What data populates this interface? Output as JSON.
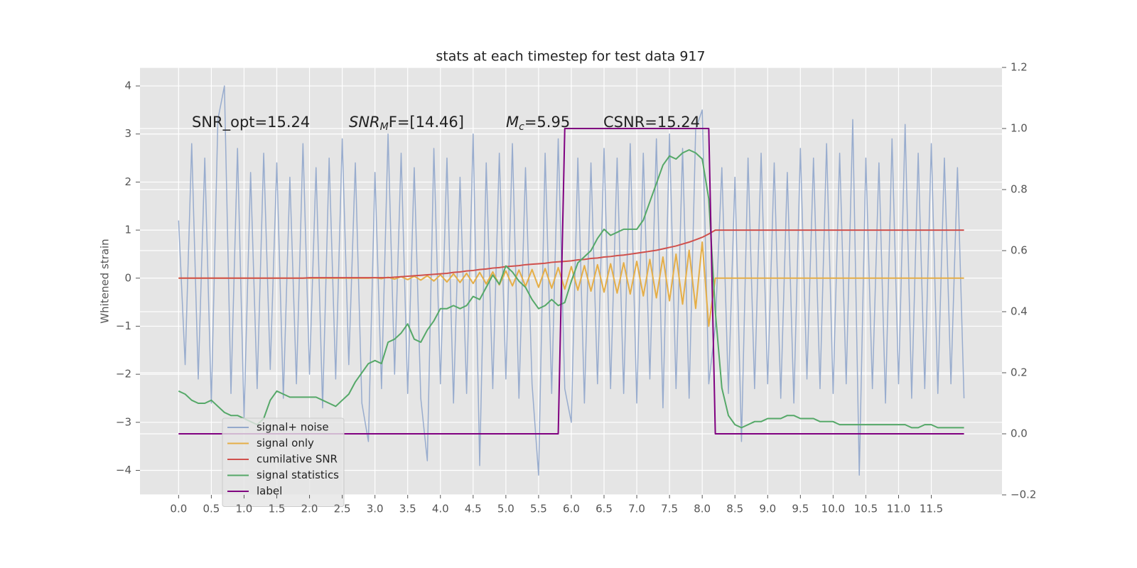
{
  "chart_data": {
    "type": "line",
    "title": "stats at each timestep for test data 917",
    "ylabel": "Whitened strain",
    "annotations": [
      {
        "text": "SNR_opt=15.24"
      },
      {
        "parts": [
          "SNR",
          "M",
          "F=[14.46]"
        ]
      },
      {
        "parts": [
          "M",
          "c",
          "=5.95"
        ]
      },
      {
        "text": "CSNR=15.24"
      }
    ],
    "grid": true,
    "legend": "lower left",
    "xlim": [
      -0.59,
      12.58
    ],
    "ylim": [
      -4.51,
      4.385
    ],
    "y2lim": [
      -0.2,
      1.2
    ],
    "xticks": [
      {
        "value": 0,
        "label": "0.0"
      },
      0.5,
      {
        "value": 1,
        "label": "1.0"
      },
      1.5,
      {
        "value": 2,
        "label": "2.0"
      },
      2.5,
      {
        "value": 3,
        "label": "3.0"
      },
      3.5,
      {
        "value": 4,
        "label": "4.0"
      },
      4.5,
      {
        "value": 5,
        "label": "5.0"
      },
      5.5,
      {
        "value": 6,
        "label": "6.0"
      },
      6.5,
      {
        "value": 7,
        "label": "7.0"
      },
      7.5,
      {
        "value": 8,
        "label": "8.0"
      },
      8.5,
      {
        "value": 9,
        "label": "9.0"
      },
      9.5,
      {
        "value": 10,
        "label": "10.0"
      },
      10.5,
      {
        "value": 11,
        "label": "11.0"
      },
      11.5
    ],
    "yticks": [
      {
        "value": -4,
        "label": "−4"
      },
      {
        "value": -3,
        "label": "−3"
      },
      {
        "value": -2,
        "label": "−2"
      },
      {
        "value": -1,
        "label": "−1"
      },
      0,
      1,
      2,
      3,
      4
    ],
    "y2ticks": [
      {
        "value": -0.2,
        "label": "−0.2"
      },
      {
        "value": 0,
        "label": "0.0"
      },
      0.2,
      0.4,
      0.6,
      0.8,
      {
        "value": 1,
        "label": "1.0"
      },
      1.2
    ],
    "x": [
      0,
      0.1,
      0.2,
      0.3,
      0.4,
      0.5,
      0.6,
      0.7,
      0.8,
      0.9,
      1,
      1.1,
      1.2,
      1.3,
      1.4,
      1.5,
      1.6,
      1.7,
      1.8,
      1.9,
      2,
      2.1,
      2.2,
      2.3,
      2.4,
      2.5,
      2.6,
      2.7,
      2.8,
      2.9,
      3,
      3.1,
      3.2,
      3.3,
      3.4,
      3.5,
      3.6,
      3.7,
      3.8,
      3.9,
      4,
      4.1,
      4.2,
      4.3,
      4.4,
      4.5,
      4.6,
      4.7,
      4.8,
      4.9,
      5,
      5.1,
      5.2,
      5.3,
      5.4,
      5.5,
      5.6,
      5.7,
      5.8,
      5.9,
      6,
      6.1,
      6.2,
      6.3,
      6.4,
      6.5,
      6.6,
      6.7,
      6.8,
      6.9,
      7,
      7.1,
      7.2,
      7.3,
      7.4,
      7.5,
      7.6,
      7.7,
      7.8,
      7.9,
      8,
      8.1,
      8.2,
      8.3,
      8.4,
      8.5,
      8.6,
      8.7,
      8.8,
      8.9,
      9,
      9.1,
      9.2,
      9.3,
      9.4,
      9.5,
      9.6,
      9.7,
      9.8,
      9.9,
      10,
      10.1,
      10.2,
      10.3,
      10.4,
      10.5,
      10.6,
      10.7,
      10.8,
      10.9,
      11,
      11.1,
      11.2,
      11.3,
      11.4,
      11.5,
      11.6,
      11.7,
      11.8,
      11.9,
      12
    ],
    "series": [
      {
        "name": "signal+ noise",
        "color": "#94a9cc",
        "width": 1.5,
        "axis": "y",
        "values": [
          1.2,
          -1.8,
          2.8,
          -2.1,
          2.5,
          -2.6,
          3.3,
          4.0,
          -2.4,
          2.7,
          -2.9,
          2.2,
          -2.3,
          2.6,
          -1.9,
          2.4,
          -2.5,
          2.1,
          -2.2,
          2.8,
          -2.0,
          2.3,
          -2.7,
          2.5,
          -2.1,
          2.9,
          -1.8,
          2.4,
          -2.6,
          -3.4,
          2.2,
          -2.3,
          3.0,
          -2.0,
          2.6,
          -2.4,
          2.3,
          -2.5,
          -3.8,
          2.7,
          -2.2,
          2.5,
          -2.6,
          2.1,
          -2.4,
          3.0,
          -3.9,
          2.4,
          -2.3,
          2.6,
          -2.1,
          2.8,
          -2.5,
          2.3,
          -2.2,
          -4.1,
          2.6,
          -2.4,
          2.9,
          -2.3,
          -3.0,
          2.5,
          -2.6,
          2.4,
          -2.2,
          2.7,
          -2.3,
          2.5,
          -2.4,
          2.8,
          -2.6,
          2.6,
          -2.1,
          2.9,
          -2.7,
          3.0,
          -2.3,
          2.7,
          -2.5,
          3.1,
          3.5,
          -2.2,
          -1.0,
          2.3,
          -2.4,
          2.1,
          -3.4,
          2.5,
          -2.3,
          2.6,
          -2.2,
          2.4,
          -2.5,
          2.2,
          -2.6,
          2.7,
          -2.1,
          2.5,
          -2.3,
          2.8,
          -2.4,
          2.6,
          -2.2,
          3.3,
          -4.1,
          2.5,
          -2.3,
          2.4,
          -2.6,
          2.9,
          -2.2,
          3.2,
          -2.5,
          2.6,
          -2.3,
          2.8,
          -2.4,
          2.5,
          -2.2,
          2.3,
          -2.5
        ]
      },
      {
        "name": "signal only",
        "color": "#e5ae47",
        "width": 2,
        "axis": "y",
        "values": [
          0,
          0,
          0,
          0,
          0,
          0,
          0,
          0,
          0,
          0,
          0,
          0,
          0,
          0,
          0,
          0,
          0,
          0,
          0,
          0,
          0,
          0,
          0,
          0,
          0,
          0,
          0,
          0,
          0,
          0,
          0.01,
          -0.01,
          0.02,
          -0.02,
          0.03,
          -0.03,
          0.04,
          -0.04,
          0.05,
          -0.06,
          0.07,
          -0.08,
          0.09,
          -0.09,
          0.1,
          -0.11,
          0.12,
          -0.12,
          0.13,
          -0.14,
          0.15,
          -0.16,
          0.17,
          -0.17,
          0.18,
          -0.19,
          0.2,
          -0.21,
          0.22,
          -0.23,
          0.24,
          -0.25,
          0.26,
          -0.27,
          0.28,
          -0.29,
          0.3,
          -0.31,
          0.32,
          -0.33,
          0.35,
          -0.37,
          0.39,
          -0.41,
          0.44,
          -0.47,
          0.5,
          -0.54,
          0.58,
          -0.63,
          0.75,
          -1.0,
          0,
          0,
          0,
          0,
          0,
          0,
          0,
          0,
          0,
          0,
          0,
          0,
          0,
          0,
          0,
          0,
          0,
          0,
          0,
          0,
          0,
          0,
          0,
          0,
          0,
          0,
          0,
          0,
          0,
          0,
          0,
          0,
          0,
          0,
          0,
          0,
          0,
          0,
          0
        ]
      },
      {
        "name": "cumilative SNR",
        "color": "#d0504c",
        "width": 2,
        "axis": "y",
        "values": [
          0,
          0,
          0,
          0,
          0,
          0,
          0,
          0,
          0,
          0,
          0,
          0,
          0,
          0,
          0,
          0,
          0,
          0,
          0,
          0,
          0.01,
          0.01,
          0.01,
          0.01,
          0.01,
          0.01,
          0.01,
          0.01,
          0.01,
          0.01,
          0.01,
          0.01,
          0.01,
          0.02,
          0.03,
          0.04,
          0.05,
          0.06,
          0.07,
          0.08,
          0.09,
          0.1,
          0.12,
          0.13,
          0.15,
          0.16,
          0.18,
          0.19,
          0.21,
          0.22,
          0.24,
          0.25,
          0.26,
          0.28,
          0.29,
          0.3,
          0.31,
          0.33,
          0.34,
          0.35,
          0.36,
          0.38,
          0.39,
          0.41,
          0.42,
          0.44,
          0.45,
          0.47,
          0.48,
          0.5,
          0.52,
          0.54,
          0.56,
          0.58,
          0.61,
          0.64,
          0.67,
          0.71,
          0.75,
          0.8,
          0.85,
          0.92,
          1,
          1,
          1,
          1,
          1,
          1,
          1,
          1,
          1,
          1,
          1,
          1,
          1,
          1,
          1,
          1,
          1,
          1,
          1,
          1,
          1,
          1,
          1,
          1,
          1,
          1,
          1,
          1,
          1,
          1,
          1,
          1,
          1,
          1,
          1,
          1,
          1,
          1,
          1
        ]
      },
      {
        "name": "signal statistics",
        "color": "#55a868",
        "width": 2,
        "axis": "y2",
        "values": [
          0.14,
          0.13,
          0.11,
          0.1,
          0.1,
          0.11,
          0.09,
          0.07,
          0.06,
          0.06,
          0.05,
          0.04,
          0.03,
          0.05,
          0.11,
          0.14,
          0.13,
          0.12,
          0.12,
          0.12,
          0.12,
          0.12,
          0.11,
          0.1,
          0.09,
          0.11,
          0.13,
          0.17,
          0.2,
          0.23,
          0.24,
          0.23,
          0.3,
          0.31,
          0.33,
          0.36,
          0.31,
          0.3,
          0.34,
          0.37,
          0.41,
          0.41,
          0.42,
          0.41,
          0.42,
          0.45,
          0.44,
          0.48,
          0.52,
          0.49,
          0.55,
          0.53,
          0.5,
          0.48,
          0.44,
          0.41,
          0.42,
          0.44,
          0.42,
          0.43,
          0.5,
          0.56,
          0.58,
          0.6,
          0.64,
          0.67,
          0.65,
          0.66,
          0.67,
          0.67,
          0.67,
          0.7,
          0.76,
          0.82,
          0.88,
          0.91,
          0.9,
          0.92,
          0.93,
          0.92,
          0.9,
          0.77,
          0.4,
          0.15,
          0.06,
          0.03,
          0.02,
          0.03,
          0.04,
          0.04,
          0.05,
          0.05,
          0.05,
          0.06,
          0.06,
          0.05,
          0.05,
          0.05,
          0.04,
          0.04,
          0.04,
          0.03,
          0.03,
          0.03,
          0.03,
          0.03,
          0.03,
          0.03,
          0.03,
          0.03,
          0.03,
          0.03,
          0.02,
          0.02,
          0.03,
          0.03,
          0.02,
          0.02,
          0.02,
          0.02,
          0.02
        ]
      },
      {
        "name": "label",
        "color": "#800080",
        "width": 2,
        "axis": "y2",
        "values": [
          0,
          0,
          0,
          0,
          0,
          0,
          0,
          0,
          0,
          0,
          0,
          0,
          0,
          0,
          0,
          0,
          0,
          0,
          0,
          0,
          0,
          0,
          0,
          0,
          0,
          0,
          0,
          0,
          0,
          0,
          0,
          0,
          0,
          0,
          0,
          0,
          0,
          0,
          0,
          0,
          0,
          0,
          0,
          0,
          0,
          0,
          0,
          0,
          0,
          0,
          0,
          0,
          0,
          0,
          0,
          0,
          0,
          0,
          0,
          1,
          1,
          1,
          1,
          1,
          1,
          1,
          1,
          1,
          1,
          1,
          1,
          1,
          1,
          1,
          1,
          1,
          1,
          1,
          1,
          1,
          1,
          1,
          0,
          0,
          0,
          0,
          0,
          0,
          0,
          0,
          0,
          0,
          0,
          0,
          0,
          0,
          0,
          0,
          0,
          0,
          0,
          0,
          0,
          0,
          0,
          0,
          0,
          0,
          0,
          0,
          0,
          0,
          0,
          0,
          0,
          0,
          0,
          0,
          0,
          0,
          0
        ]
      }
    ]
  }
}
